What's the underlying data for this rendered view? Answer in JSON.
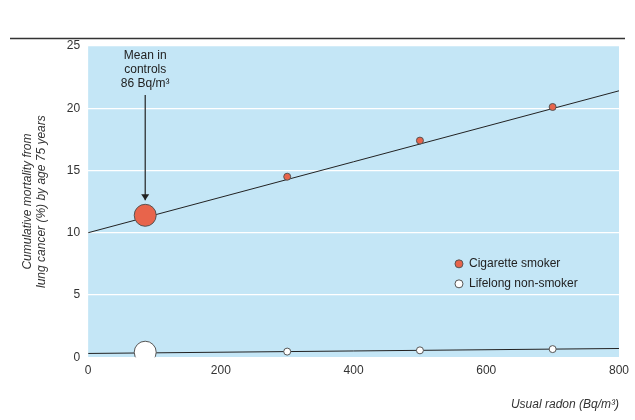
{
  "chart_data": {
    "type": "scatter",
    "x_label": "Usual radon (Bq/m³)",
    "y_label": [
      "Cumulative mortality from",
      "lung cancer (%) by age 75 years"
    ],
    "series": [
      {
        "name": "Cigarette smoker",
        "color": "#e8644b",
        "marker": "circle",
        "x": [
          86,
          300,
          500,
          700
        ],
        "values": [
          11.4,
          14.5,
          17.4,
          20.1
        ],
        "fit": {
          "x": [
            0,
            800
          ],
          "values": [
            10,
            21.4
          ]
        }
      },
      {
        "name": "Lifelong non-smoker",
        "color": "#ffffff",
        "marker": "circle",
        "x": [
          86,
          300,
          500,
          700
        ],
        "values": [
          0.4,
          0.45,
          0.55,
          0.65
        ],
        "fit": {
          "x": [
            0,
            800
          ],
          "values": [
            0.3,
            0.7
          ]
        }
      }
    ],
    "annotations": [
      {
        "text": [
          "Mean in",
          "controls",
          "86 Bq/m³"
        ],
        "x": 86
      }
    ],
    "xlim": [
      0,
      800
    ],
    "xticks": [
      0,
      200,
      400,
      600,
      800
    ],
    "ylim": [
      0,
      25
    ],
    "yticks": [
      0,
      5,
      10,
      15,
      20,
      25
    ],
    "grid": true,
    "legend": "right"
  }
}
